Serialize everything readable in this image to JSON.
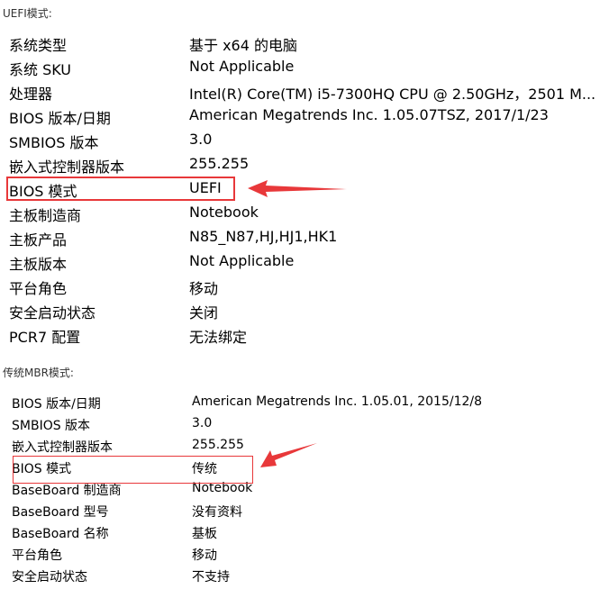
{
  "uefi": {
    "header": "UEFI模式:",
    "rows": [
      {
        "label": "系统类型",
        "value": "基于 x64 的电脑"
      },
      {
        "label": "系统 SKU",
        "value": "Not Applicable"
      },
      {
        "label": "处理器",
        "value": "Intel(R) Core(TM) i5-7300HQ CPU @ 2.50GHz，2501 M..."
      },
      {
        "label": "BIOS 版本/日期",
        "value": "American Megatrends Inc. 1.05.07TSZ, 2017/1/23"
      },
      {
        "label": "SMBIOS 版本",
        "value": "3.0"
      },
      {
        "label": "嵌入式控制器版本",
        "value": "255.255"
      },
      {
        "label": "BIOS 模式",
        "value": "UEFI"
      },
      {
        "label": "主板制造商",
        "value": "Notebook"
      },
      {
        "label": "主板产品",
        "value": "N85_N87,HJ,HJ1,HK1"
      },
      {
        "label": "主板版本",
        "value": "Not Applicable"
      },
      {
        "label": "平台角色",
        "value": "移动"
      },
      {
        "label": "安全启动状态",
        "value": "关闭"
      },
      {
        "label": "PCR7 配置",
        "value": "无法绑定"
      }
    ]
  },
  "legacy": {
    "header": "传统MBR模式:",
    "rows": [
      {
        "label": "BIOS 版本/日期",
        "value": "American Megatrends Inc. 1.05.01, 2015/12/8"
      },
      {
        "label": "SMBIOS 版本",
        "value": "3.0"
      },
      {
        "label": "嵌入式控制器版本",
        "value": "255.255"
      },
      {
        "label": "BIOS 模式",
        "value": "传统"
      },
      {
        "label": "BaseBoard 制造商",
        "value": "Notebook"
      },
      {
        "label": "BaseBoard 型号",
        "value": "没有资料"
      },
      {
        "label": "BaseBoard 名称",
        "value": "基板"
      },
      {
        "label": "平台角色",
        "value": "移动"
      },
      {
        "label": "安全启动状态",
        "value": "不支持"
      }
    ]
  },
  "annotation_color": "#e8383a"
}
